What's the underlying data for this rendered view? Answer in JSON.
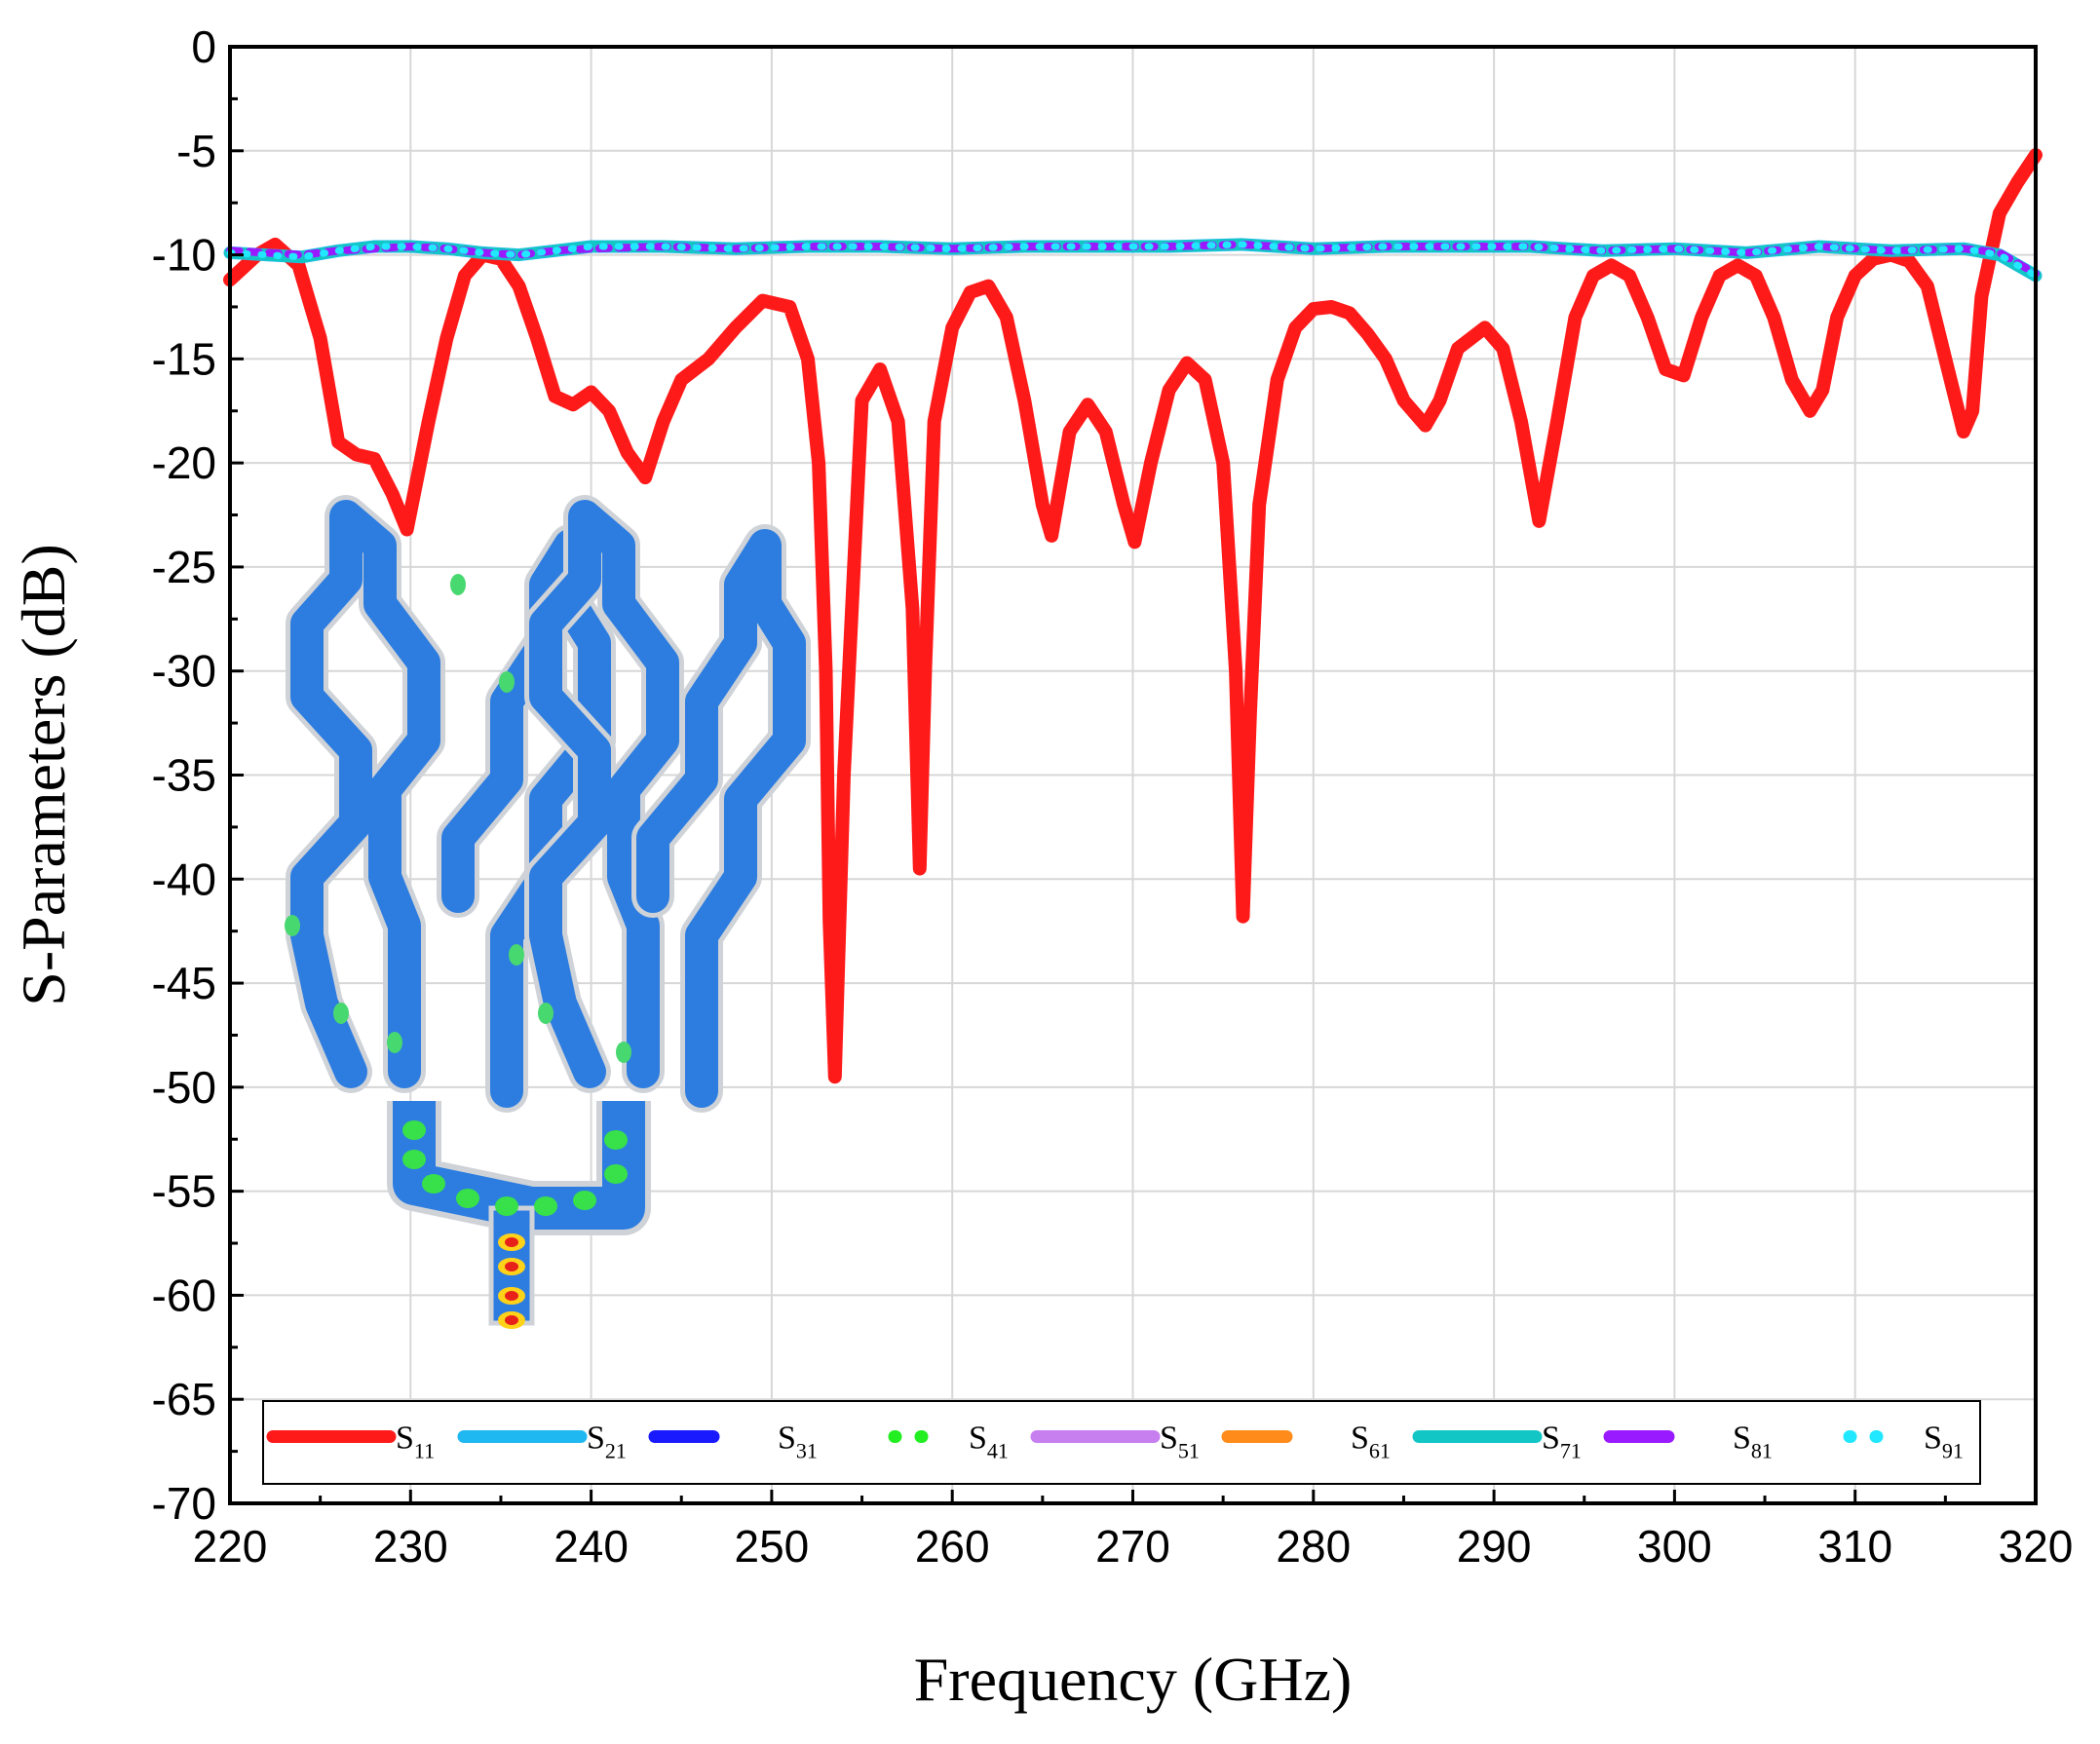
{
  "chart_data": {
    "type": "line",
    "title": "",
    "xlabel": "Frequency (GHz)",
    "ylabel": "S-Parameters (dB)",
    "xlim": [
      220,
      320
    ],
    "ylim": [
      -70,
      0
    ],
    "x_ticks": [
      "220",
      "230",
      "240",
      "250",
      "260",
      "270",
      "280",
      "290",
      "300",
      "310",
      "320"
    ],
    "y_ticks": [
      "0",
      "-5",
      "-10",
      "-15",
      "-20",
      "-25",
      "-30",
      "-35",
      "-40",
      "-45",
      "-50",
      "-55",
      "-60",
      "-65",
      "-70"
    ],
    "grid": true,
    "legend_position": "bottom",
    "legend": [
      {
        "base": "S",
        "sub": "11",
        "color": "#ff1a1a",
        "style": "solid"
      },
      {
        "base": "S",
        "sub": "21",
        "color": "#1fb8f0",
        "style": "solid"
      },
      {
        "base": "S",
        "sub": "31",
        "color": "#1a1aff",
        "style": "dash"
      },
      {
        "base": "S",
        "sub": "41",
        "color": "#22ee22",
        "style": "dot"
      },
      {
        "base": "S",
        "sub": "51",
        "color": "#c77ff0",
        "style": "solid"
      },
      {
        "base": "S",
        "sub": "61",
        "color": "#ff8c1a",
        "style": "dash"
      },
      {
        "base": "S",
        "sub": "71",
        "color": "#13c6c6",
        "style": "solid"
      },
      {
        "base": "S",
        "sub": "81",
        "color": "#9a1aff",
        "style": "dash"
      },
      {
        "base": "S",
        "sub": "91",
        "color": "#22e8ff",
        "style": "dot"
      }
    ],
    "series": [
      {
        "name": "S11",
        "color": "#ff1a1a",
        "x": [
          220,
          221.5,
          222.5,
          223.8,
          225,
          226,
          227,
          228,
          229,
          229.8,
          231,
          232,
          233,
          234,
          235,
          236,
          237,
          238,
          239,
          240,
          241,
          242,
          243,
          244,
          245,
          246.5,
          248,
          249.5,
          251,
          252,
          252.6,
          253,
          253.2,
          253.5,
          254,
          255,
          256,
          257,
          257.8,
          258.2,
          258.5,
          259,
          260,
          261,
          262,
          263,
          264,
          265,
          265.5,
          266.5,
          267.5,
          268.5,
          269.5,
          270.1,
          271,
          272,
          273,
          274,
          275,
          275.7,
          276.1,
          276.5,
          277,
          278,
          279,
          280,
          281,
          282,
          283,
          284,
          285,
          286.2,
          287,
          288,
          289.5,
          290.5,
          291.5,
          292.5,
          293.5,
          294.5,
          295.5,
          296.5,
          297.5,
          298.5,
          299.5,
          300.5,
          301.5,
          302.5,
          303.5,
          304.5,
          305.5,
          306.5,
          307.5,
          308.2,
          309,
          310,
          311,
          312,
          313,
          314,
          315,
          316,
          316.5,
          317,
          318,
          319,
          320
        ],
        "y": [
          -11.2,
          -10,
          -9.5,
          -10.5,
          -14,
          -19,
          -19.6,
          -19.8,
          -21.5,
          -23.2,
          -18,
          -14,
          -11,
          -10,
          -10.2,
          -11.5,
          -14,
          -16.8,
          -17.2,
          -16.6,
          -17.5,
          -19.5,
          -20.7,
          -18,
          -16,
          -15,
          -13.5,
          -12.2,
          -12.5,
          -15,
          -20,
          -30,
          -42,
          -49.5,
          -35,
          -17,
          -15.5,
          -18,
          -27,
          -39.5,
          -30,
          -18,
          -13.5,
          -11.8,
          -11.5,
          -13,
          -17,
          -22,
          -23.5,
          -18.5,
          -17.2,
          -18.5,
          -22,
          -23.8,
          -20,
          -16.5,
          -15.2,
          -16,
          -20,
          -30,
          -41.8,
          -32,
          -22,
          -16,
          -13.5,
          -12.6,
          -12.5,
          -12.8,
          -13.8,
          -15,
          -17,
          -18.2,
          -17,
          -14.5,
          -13.5,
          -14.5,
          -18,
          -22.8,
          -18,
          -13,
          -11,
          -10.5,
          -11,
          -13,
          -15.5,
          -15.8,
          -13,
          -11,
          -10.5,
          -11,
          -13,
          -16,
          -17.5,
          -16.5,
          -13,
          -11,
          -10.2,
          -10,
          -10.3,
          -11.5,
          -15,
          -18.5,
          -17.5,
          -12,
          -8,
          -6.5,
          -5.2
        ]
      },
      {
        "name": "S21",
        "color": "#1fb8f0",
        "x": [
          220,
          222,
          224,
          226,
          228,
          230,
          232,
          234,
          236,
          238,
          240,
          244,
          248,
          252,
          256,
          260,
          264,
          268,
          272,
          276,
          280,
          284,
          288,
          292,
          296,
          300,
          304,
          308,
          312,
          316,
          318,
          320
        ],
        "y": [
          -9.9,
          -10.0,
          -10.1,
          -9.8,
          -9.6,
          -9.6,
          -9.7,
          -9.9,
          -10.0,
          -9.8,
          -9.6,
          -9.6,
          -9.7,
          -9.6,
          -9.6,
          -9.7,
          -9.6,
          -9.6,
          -9.6,
          -9.5,
          -9.7,
          -9.6,
          -9.6,
          -9.6,
          -9.8,
          -9.7,
          -9.9,
          -9.6,
          -9.8,
          -9.7,
          -10.0,
          -11.0
        ]
      },
      {
        "name": "S71",
        "color": "#13c6c6",
        "x": [
          220,
          222,
          224,
          226,
          228,
          230,
          232,
          234,
          236,
          238,
          240,
          244,
          248,
          252,
          256,
          260,
          264,
          268,
          272,
          276,
          280,
          284,
          288,
          292,
          296,
          300,
          304,
          308,
          312,
          316,
          318,
          320
        ],
        "y": [
          -9.9,
          -10.0,
          -10.1,
          -9.8,
          -9.6,
          -9.6,
          -9.7,
          -9.9,
          -10.0,
          -9.8,
          -9.6,
          -9.6,
          -9.7,
          -9.6,
          -9.6,
          -9.7,
          -9.6,
          -9.6,
          -9.6,
          -9.5,
          -9.7,
          -9.6,
          -9.6,
          -9.6,
          -9.8,
          -9.7,
          -9.9,
          -9.6,
          -9.8,
          -9.7,
          -10.0,
          -11.0
        ]
      },
      {
        "name": "S81",
        "color": "#9a1aff",
        "x": [
          220,
          222,
          224,
          226,
          228,
          230,
          232,
          234,
          236,
          238,
          240,
          244,
          248,
          252,
          256,
          260,
          264,
          268,
          272,
          276,
          280,
          284,
          288,
          292,
          296,
          300,
          304,
          308,
          312,
          316,
          318,
          320
        ],
        "y": [
          -9.8,
          -9.9,
          -10.0,
          -9.8,
          -9.7,
          -9.6,
          -9.7,
          -9.9,
          -10.0,
          -9.8,
          -9.7,
          -9.6,
          -9.7,
          -9.6,
          -9.6,
          -9.7,
          -9.6,
          -9.6,
          -9.6,
          -9.5,
          -9.7,
          -9.6,
          -9.6,
          -9.6,
          -9.8,
          -9.7,
          -9.9,
          -9.6,
          -9.8,
          -9.7,
          -9.9,
          -10.9
        ]
      },
      {
        "name": "S91",
        "color": "#22e8ff",
        "x": [
          220,
          222,
          224,
          226,
          228,
          230,
          232,
          234,
          236,
          238,
          240,
          244,
          248,
          252,
          256,
          260,
          264,
          268,
          272,
          276,
          280,
          284,
          288,
          292,
          296,
          300,
          304,
          308,
          312,
          316,
          318,
          320
        ],
        "y": [
          -9.9,
          -10.0,
          -10.1,
          -9.8,
          -9.6,
          -9.6,
          -9.7,
          -9.9,
          -10.0,
          -9.8,
          -9.6,
          -9.6,
          -9.7,
          -9.6,
          -9.6,
          -9.7,
          -9.6,
          -9.6,
          -9.6,
          -9.5,
          -9.7,
          -9.6,
          -9.6,
          -9.6,
          -9.8,
          -9.7,
          -9.9,
          -9.6,
          -9.8,
          -9.7,
          -10.0,
          -11.0
        ]
      }
    ]
  },
  "inset": {
    "description_icon": "antenna-array-field-inset"
  }
}
